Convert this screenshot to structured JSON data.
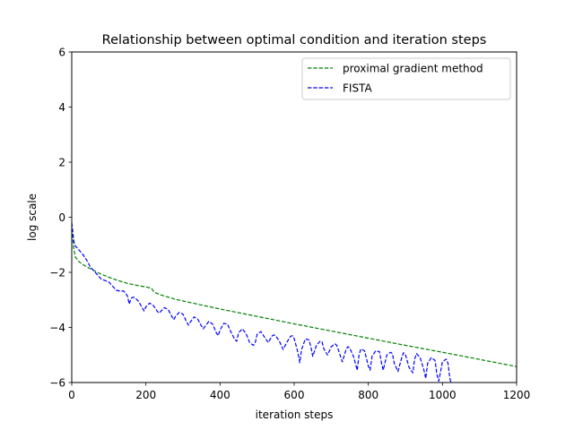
{
  "chart_data": {
    "type": "line",
    "title": "Relationship between optimal condition and iteration steps",
    "xlabel": "iteration steps",
    "ylabel": "log scale",
    "xlim": [
      0,
      1200
    ],
    "ylim": [
      -6,
      6
    ],
    "xticks": [
      0,
      200,
      400,
      600,
      800,
      1000,
      1200
    ],
    "yticks": [
      -6,
      -4,
      -2,
      0,
      2,
      4,
      6
    ],
    "grid": false,
    "legend_position": "upper right",
    "series": [
      {
        "name": "proximal gradient method",
        "color": "#008000",
        "linestyle": "dashed",
        "x": [
          0,
          5,
          10,
          20,
          30,
          50,
          75,
          100,
          125,
          150,
          175,
          200,
          215,
          222,
          240,
          280,
          320,
          400,
          500,
          600,
          700,
          800,
          900,
          1000,
          1100,
          1200
        ],
        "y": [
          -0.4,
          -1.1,
          -1.45,
          -1.62,
          -1.72,
          -1.87,
          -2.04,
          -2.18,
          -2.3,
          -2.4,
          -2.47,
          -2.53,
          -2.58,
          -2.72,
          -2.82,
          -2.98,
          -3.1,
          -3.33,
          -3.6,
          -3.87,
          -4.13,
          -4.39,
          -4.65,
          -4.9,
          -5.16,
          -5.42
        ]
      },
      {
        "name": "FISTA",
        "color": "#0000ff",
        "linestyle": "dashed",
        "x": [
          0,
          3,
          6,
          10,
          15,
          20,
          30,
          40,
          50,
          60,
          70,
          80,
          90,
          100,
          110,
          120,
          130,
          140,
          150,
          155,
          160,
          165,
          170,
          180,
          190,
          195,
          200,
          210,
          220,
          230,
          235,
          240,
          250,
          260,
          270,
          275,
          280,
          290,
          300,
          310,
          315,
          320,
          330,
          340,
          350,
          355,
          360,
          370,
          380,
          390,
          395,
          400,
          410,
          420,
          430,
          440,
          445,
          450,
          460,
          470,
          480,
          490,
          495,
          500,
          510,
          520,
          530,
          540,
          545,
          550,
          560,
          570,
          580,
          590,
          595,
          600,
          610,
          615,
          620,
          630,
          640,
          645,
          650,
          660,
          670,
          675,
          680,
          690,
          700,
          710,
          715,
          720,
          730,
          740,
          745,
          750,
          760,
          770,
          775,
          780,
          790,
          800,
          805,
          810,
          820,
          830,
          835,
          840,
          850,
          860,
          865,
          870,
          880,
          890,
          895,
          900,
          910,
          920,
          925,
          930,
          940,
          950,
          955,
          960,
          970,
          980,
          985,
          990,
          1000,
          1010,
          1015,
          1020,
          1025
        ],
        "y": [
          -0.2,
          -0.55,
          -0.9,
          -1.05,
          -1.12,
          -1.2,
          -1.35,
          -1.55,
          -1.8,
          -1.95,
          -2.1,
          -2.25,
          -2.3,
          -2.35,
          -2.5,
          -2.65,
          -2.68,
          -2.68,
          -2.85,
          -3.15,
          -2.95,
          -2.9,
          -2.92,
          -3.05,
          -3.28,
          -3.4,
          -3.25,
          -3.12,
          -3.2,
          -3.4,
          -3.48,
          -3.42,
          -3.28,
          -3.35,
          -3.6,
          -3.72,
          -3.6,
          -3.45,
          -3.52,
          -3.8,
          -3.92,
          -3.8,
          -3.62,
          -3.7,
          -3.95,
          -4.05,
          -3.95,
          -3.78,
          -3.88,
          -4.2,
          -4.3,
          -4.1,
          -3.85,
          -3.88,
          -4.18,
          -4.45,
          -4.5,
          -4.2,
          -4.05,
          -4.22,
          -4.55,
          -4.65,
          -4.55,
          -4.25,
          -4.15,
          -4.35,
          -4.55,
          -4.32,
          -4.27,
          -4.3,
          -4.5,
          -4.8,
          -4.55,
          -4.33,
          -4.3,
          -4.4,
          -4.9,
          -5.28,
          -4.8,
          -4.42,
          -4.45,
          -4.7,
          -5.05,
          -4.65,
          -4.5,
          -4.52,
          -4.78,
          -5.0,
          -4.7,
          -4.6,
          -4.65,
          -4.85,
          -5.25,
          -4.8,
          -4.7,
          -4.75,
          -5.05,
          -5.55,
          -5.0,
          -4.78,
          -4.85,
          -5.4,
          -5.55,
          -5.05,
          -4.85,
          -4.88,
          -5.25,
          -5.55,
          -5.0,
          -4.9,
          -4.95,
          -5.3,
          -5.6,
          -5.1,
          -4.92,
          -4.98,
          -5.45,
          -5.65,
          -5.15,
          -4.95,
          -5.1,
          -5.55,
          -5.85,
          -5.3,
          -5.1,
          -5.2,
          -5.7,
          -5.95,
          -5.25,
          -5.15,
          -5.3,
          -5.85,
          -6.1
        ]
      }
    ]
  }
}
